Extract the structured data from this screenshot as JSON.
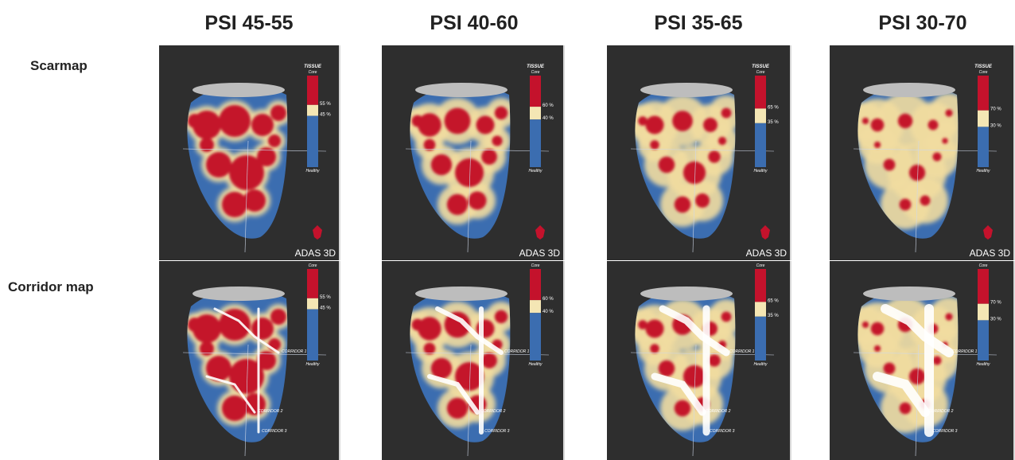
{
  "columns": [
    {
      "title": "PSI 45-55",
      "upper": "55 %",
      "lower": "45 %"
    },
    {
      "title": "PSI 40-60",
      "upper": "60 %",
      "lower": "40 %"
    },
    {
      "title": "PSI 35-65",
      "upper": "65 %",
      "lower": "35 %"
    },
    {
      "title": "PSI 30-70",
      "upper": "70 %",
      "lower": "30 %"
    }
  ],
  "rows": [
    "Scarmap",
    "Corridor map"
  ],
  "legend": {
    "tissue": "TISSUE",
    "core": "Core",
    "healthy": "Healthy"
  },
  "logo": "ADAS 3D",
  "corridor_labels": [
    "CORRIDOR 1",
    "CORRIDOR 2",
    "CORRIDOR 3"
  ]
}
